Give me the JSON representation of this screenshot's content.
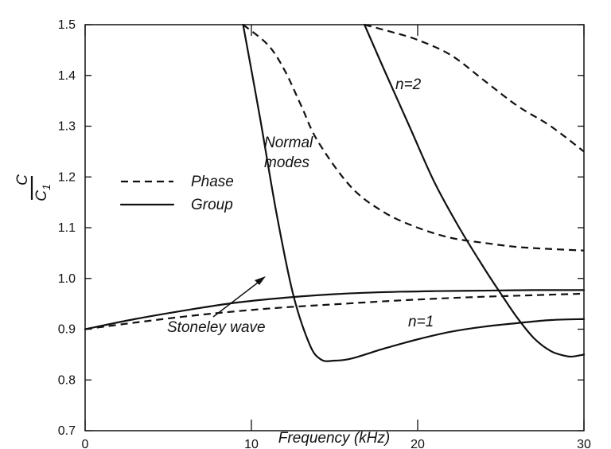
{
  "chart_data": {
    "type": "line",
    "xlabel": "Frequency  (kHz)",
    "ylabel_num": "C",
    "ylabel_den": "C",
    "ylabel_den_sub": "1",
    "xlim": [
      0,
      30
    ],
    "ylim": [
      0.7,
      1.5
    ],
    "xticks": [
      0,
      10,
      20,
      30
    ],
    "yticks": [
      0.7,
      0.8,
      0.9,
      1.0,
      1.1,
      1.2,
      1.3,
      1.4,
      1.5
    ],
    "xtick_labels": [
      "0",
      "10",
      "20",
      "30"
    ],
    "ytick_labels": [
      "0.7",
      "0.8",
      "0.9",
      "1.0",
      "1.1",
      "1.2",
      "1.3",
      "1.4",
      "1.5"
    ],
    "grid": false,
    "legend": {
      "placement": "left-middle",
      "entries": [
        {
          "label": "Phase",
          "style": "dashed"
        },
        {
          "label": "Group",
          "style": "solid"
        }
      ]
    },
    "annotations": {
      "normal_modes_line1": "Normal",
      "normal_modes_line2": "modes",
      "stoneley": "Stoneley  wave",
      "n1": "n=1",
      "n2": "n=2"
    },
    "series": [
      {
        "style": "dashed",
        "x": [
          0,
          3,
          6,
          9,
          12,
          15,
          18,
          21,
          24,
          27,
          30
        ],
        "y": [
          0.9,
          0.913,
          0.925,
          0.935,
          0.943,
          0.949,
          0.955,
          0.96,
          0.964,
          0.967,
          0.97
        ]
      },
      {
        "style": "solid",
        "x": [
          0,
          3,
          6,
          9,
          12,
          15,
          18,
          21,
          24,
          27,
          30
        ],
        "y": [
          0.9,
          0.92,
          0.937,
          0.952,
          0.962,
          0.969,
          0.973,
          0.975,
          0.976,
          0.977,
          0.977
        ]
      },
      {
        "style": "dashed",
        "x": [
          9.5,
          11,
          12,
          13,
          14,
          16,
          18,
          20,
          22,
          24,
          26,
          28,
          30
        ],
        "y": [
          1.5,
          1.46,
          1.41,
          1.34,
          1.27,
          1.18,
          1.13,
          1.1,
          1.08,
          1.07,
          1.062,
          1.058,
          1.055
        ]
      },
      {
        "style": "solid",
        "x": [
          9.5,
          10.5,
          11.5,
          12.5,
          13.5,
          14.2,
          15,
          16,
          18,
          20,
          22,
          24,
          26,
          28,
          30
        ],
        "y": [
          1.5,
          1.32,
          1.13,
          0.97,
          0.87,
          0.84,
          0.838,
          0.842,
          0.862,
          0.88,
          0.895,
          0.905,
          0.912,
          0.918,
          0.92
        ]
      },
      {
        "style": "dashed",
        "x": [
          16.8,
          18.5,
          20,
          22,
          24,
          26,
          28,
          30
        ],
        "y": [
          1.5,
          1.485,
          1.47,
          1.44,
          1.39,
          1.34,
          1.3,
          1.25
        ]
      },
      {
        "style": "solid",
        "x": [
          16.8,
          18,
          19.5,
          21,
          22.5,
          24,
          25,
          26,
          27,
          28,
          28.8,
          29.3,
          30
        ],
        "y": [
          1.5,
          1.41,
          1.3,
          1.19,
          1.1,
          1.02,
          0.97,
          0.922,
          0.882,
          0.857,
          0.848,
          0.846,
          0.85
        ]
      }
    ]
  }
}
